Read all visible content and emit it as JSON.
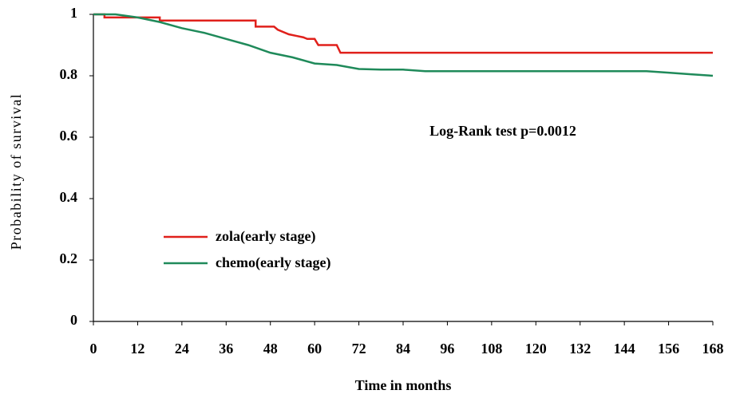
{
  "chart_data": {
    "type": "line",
    "xlabel": "Time in months",
    "ylabel": "Probability of survival",
    "annotation": "Log-Rank test p=0.0012",
    "xlim": [
      0,
      168
    ],
    "xticks": [
      0,
      12,
      24,
      36,
      48,
      60,
      72,
      84,
      96,
      108,
      120,
      132,
      144,
      156,
      168
    ],
    "ylim": [
      0,
      1
    ],
    "yticks": [
      0,
      0.2,
      0.4,
      0.6,
      0.8,
      1
    ],
    "legend": "left",
    "series": [
      {
        "name": "zola(early stage)",
        "color": "#e0201b",
        "x": [
          0,
          3,
          3,
          18,
          18,
          44,
          44,
          49,
          50,
          53,
          55,
          57,
          58,
          60,
          61,
          66,
          67,
          168
        ],
        "values": [
          1,
          1,
          0.99,
          0.99,
          0.98,
          0.98,
          0.96,
          0.96,
          0.95,
          0.935,
          0.93,
          0.925,
          0.92,
          0.92,
          0.9,
          0.9,
          0.875,
          0.875
        ]
      },
      {
        "name": "chemo(early stage)",
        "color": "#1f8a5a",
        "x": [
          0,
          6,
          12,
          18,
          24,
          30,
          36,
          42,
          48,
          54,
          60,
          66,
          72,
          78,
          84,
          90,
          120,
          150,
          156,
          162,
          168
        ],
        "values": [
          1,
          1,
          0.99,
          0.975,
          0.955,
          0.94,
          0.92,
          0.9,
          0.875,
          0.86,
          0.84,
          0.835,
          0.822,
          0.82,
          0.82,
          0.815,
          0.815,
          0.815,
          0.81,
          0.805,
          0.8
        ]
      }
    ]
  }
}
